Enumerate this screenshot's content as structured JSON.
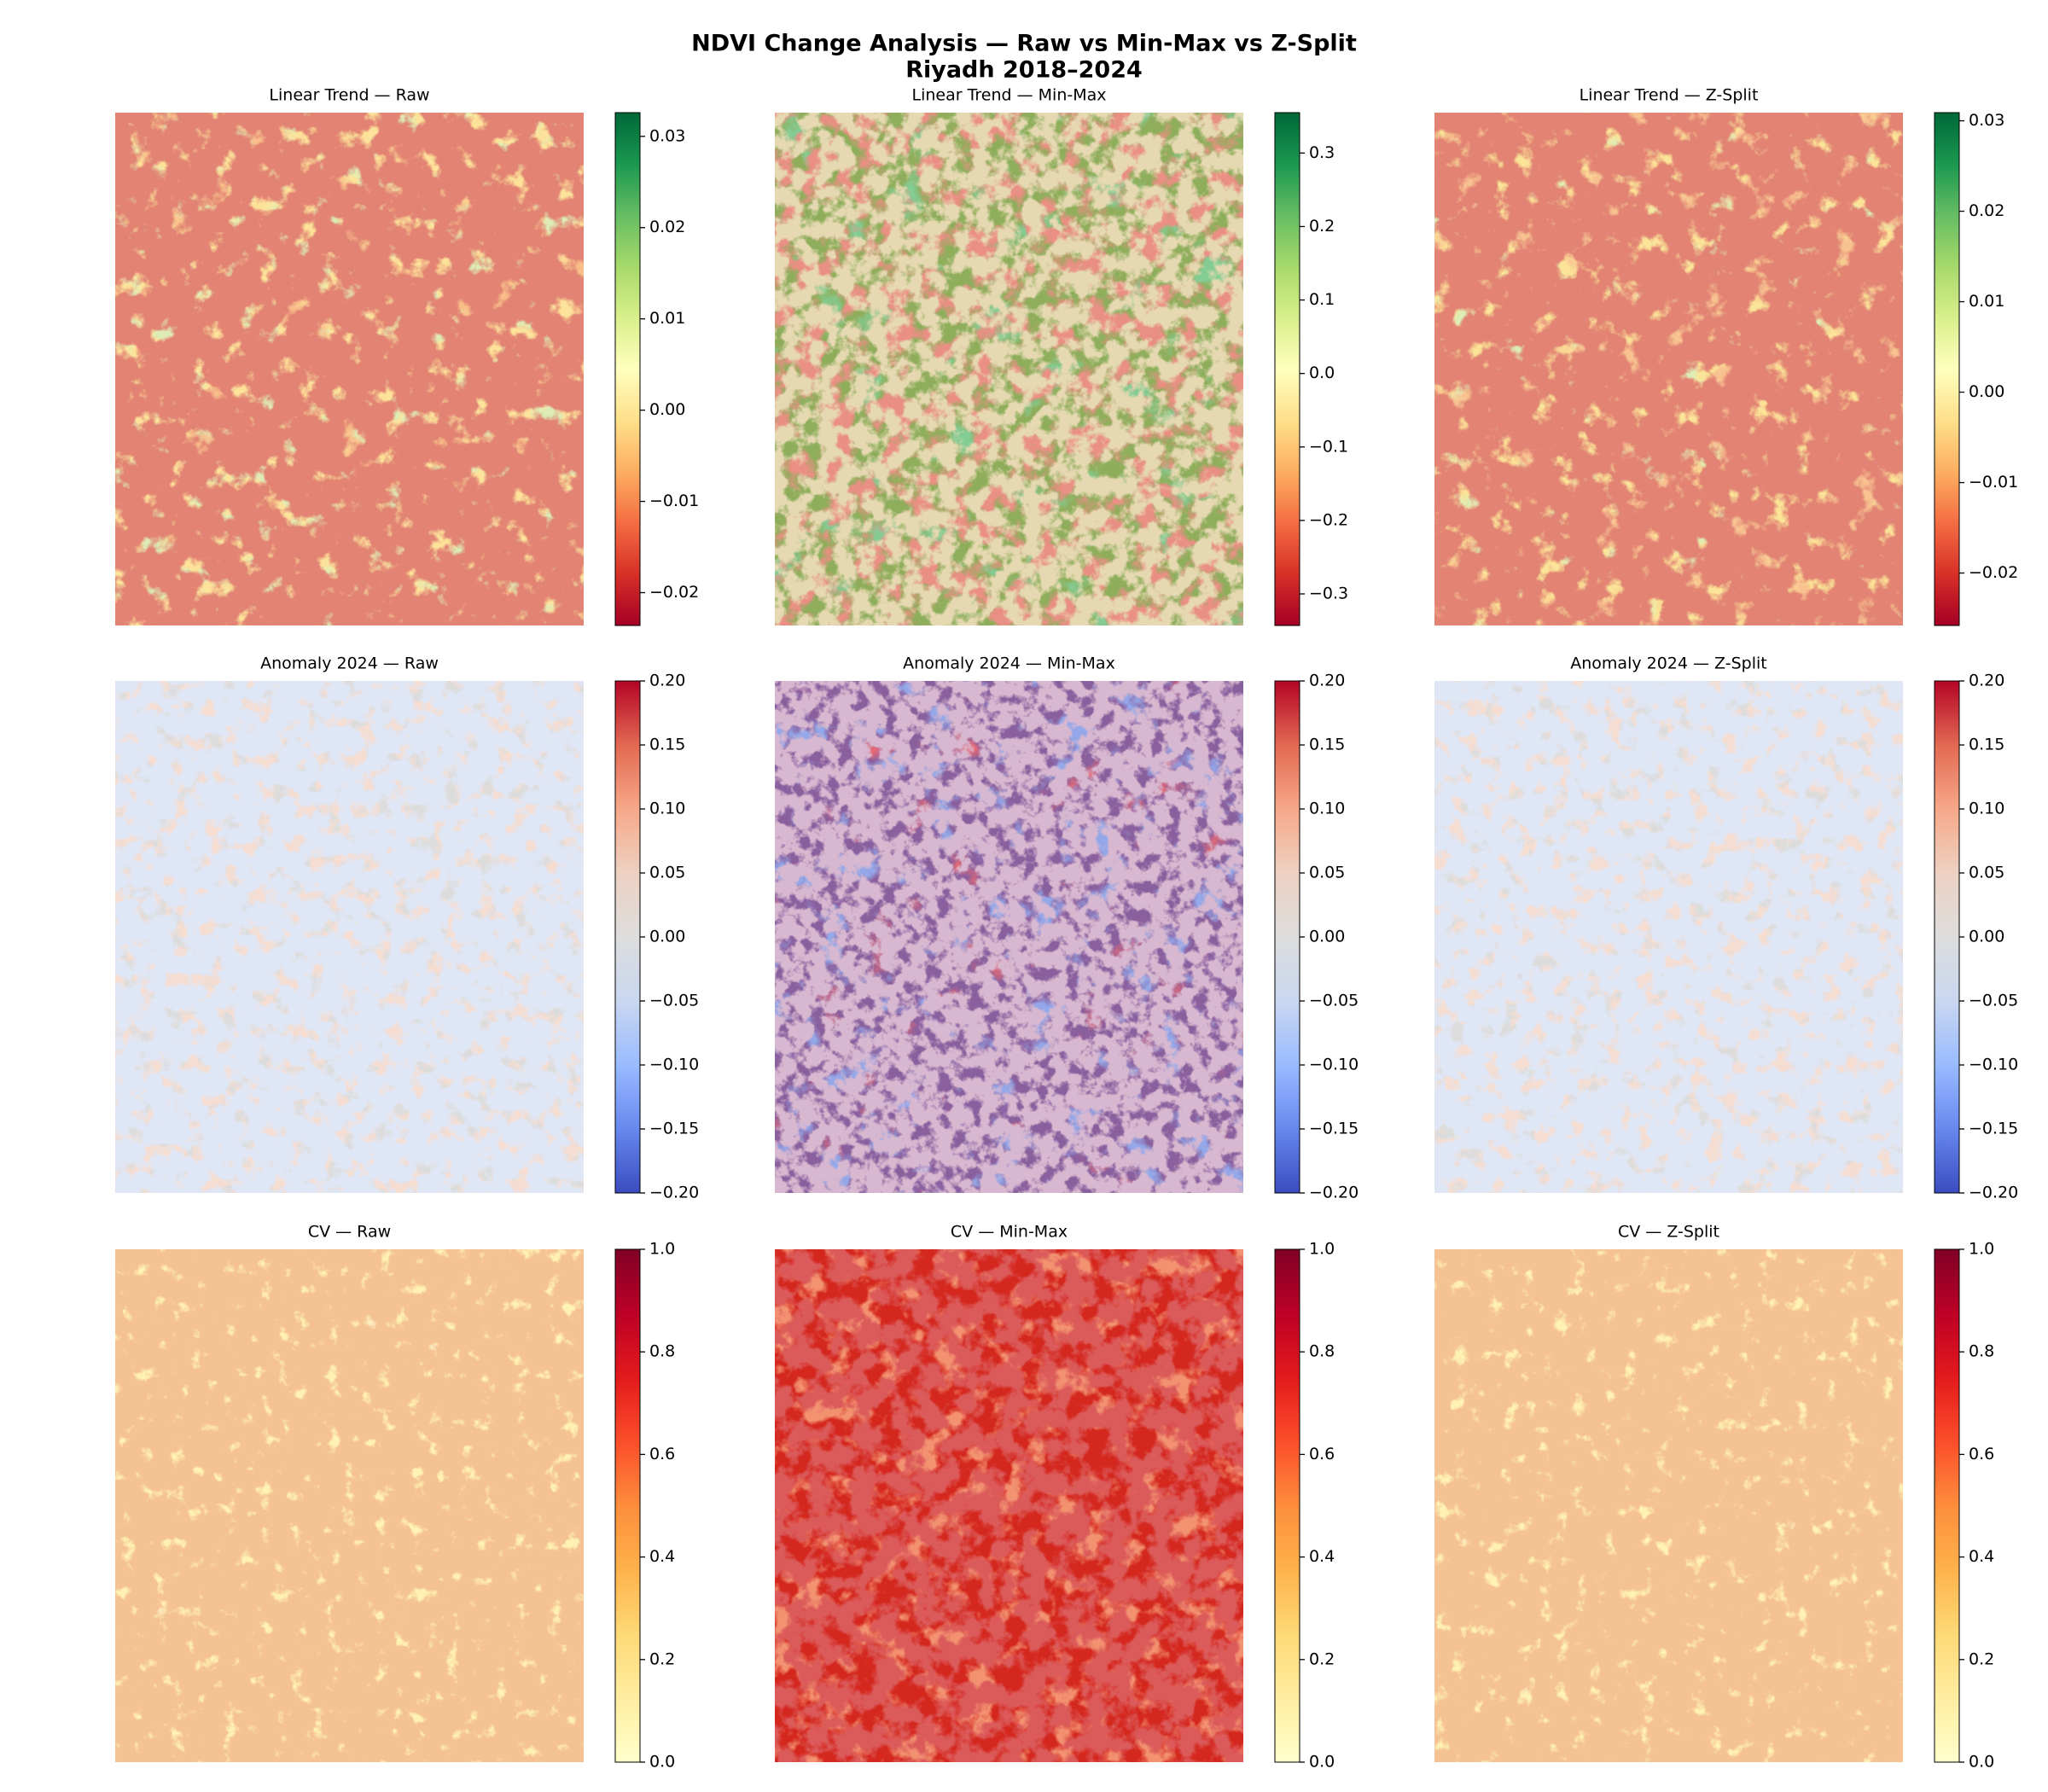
{
  "title": "NDVI Change Analysis — Raw vs Min-Max vs Z-Split",
  "subtitle": "Riyadh 2018–2024",
  "chart_data": [
    {
      "type": "image",
      "title": "Linear Trend — Raw",
      "colors": [
        "#a50026",
        "#d73027",
        "#f46d43",
        "#fdae61",
        "#fee08b",
        "#ffffbf",
        "#d9ef8b",
        "#a6d96a",
        "#66bd63",
        "#1a9850",
        "#006837"
      ],
      "ylim": [
        -0.0236,
        0.0326
      ],
      "yticks": [
        {
          "value": -0.02,
          "label": "−0.02"
        },
        {
          "value": -0.01,
          "label": "−0.01"
        },
        {
          "value": 0,
          "label": "0.00"
        },
        0.01,
        0.02,
        0.03
      ]
    },
    {
      "type": "image",
      "title": "Linear Trend — Min-Max",
      "colors": [
        "#a50026",
        "#d73027",
        "#f46d43",
        "#fdae61",
        "#fee08b",
        "#ffffbf",
        "#d9ef8b",
        "#a6d96a",
        "#66bd63",
        "#1a9850",
        "#006837"
      ],
      "ylim": [
        -0.343,
        0.355
      ],
      "yticks": [
        {
          "value": -0.3,
          "label": "−0.3"
        },
        {
          "value": -0.2,
          "label": "−0.2"
        },
        {
          "value": -0.1,
          "label": "−0.1"
        },
        {
          "value": 0,
          "label": "0.0"
        },
        0.1,
        0.2,
        0.3
      ]
    },
    {
      "type": "image",
      "title": "Linear Trend — Z-Split",
      "colors": [
        "#a50026",
        "#d73027",
        "#f46d43",
        "#fdae61",
        "#fee08b",
        "#ffffbf",
        "#d9ef8b",
        "#a6d96a",
        "#66bd63",
        "#1a9850",
        "#006837"
      ],
      "ylim": [
        -0.0258,
        0.0309
      ],
      "yticks": [
        {
          "value": -0.02,
          "label": "−0.02"
        },
        {
          "value": -0.01,
          "label": "−0.01"
        },
        {
          "value": 0,
          "label": "0.00"
        },
        0.01,
        0.02,
        0.03
      ]
    },
    {
      "type": "image",
      "title": "Anomaly 2024 — Raw",
      "colors": [
        "#3b4cc0",
        "#6788ee",
        "#9abbff",
        "#c9d7f0",
        "#dddddd",
        "#edd1c2",
        "#f7a889",
        "#e26952",
        "#b40426"
      ],
      "ylim": [
        -0.2,
        0.2
      ],
      "yticks": [
        {
          "value": -0.2,
          "label": "−0.20"
        },
        {
          "value": -0.15,
          "label": "−0.15"
        },
        {
          "value": -0.1,
          "label": "−0.10"
        },
        {
          "value": -0.05,
          "label": "−0.05"
        },
        {
          "value": 0,
          "label": "0.00"
        },
        0.05,
        {
          "value": 0.1,
          "label": "0.10"
        },
        0.15,
        {
          "value": 0.2,
          "label": "0.20"
        }
      ]
    },
    {
      "type": "image",
      "title": "Anomaly 2024 — Min-Max",
      "colors": [
        "#3b4cc0",
        "#6788ee",
        "#9abbff",
        "#c9d7f0",
        "#dddddd",
        "#edd1c2",
        "#f7a889",
        "#e26952",
        "#b40426"
      ],
      "ylim": [
        -0.2,
        0.2
      ],
      "yticks": [
        {
          "value": -0.2,
          "label": "−0.20"
        },
        {
          "value": -0.15,
          "label": "−0.15"
        },
        {
          "value": -0.1,
          "label": "−0.10"
        },
        {
          "value": -0.05,
          "label": "−0.05"
        },
        {
          "value": 0,
          "label": "0.00"
        },
        0.05,
        {
          "value": 0.1,
          "label": "0.10"
        },
        0.15,
        {
          "value": 0.2,
          "label": "0.20"
        }
      ]
    },
    {
      "type": "image",
      "title": "Anomaly 2024 — Z-Split",
      "colors": [
        "#3b4cc0",
        "#6788ee",
        "#9abbff",
        "#c9d7f0",
        "#dddddd",
        "#edd1c2",
        "#f7a889",
        "#e26952",
        "#b40426"
      ],
      "ylim": [
        -0.2,
        0.2
      ],
      "yticks": [
        {
          "value": -0.2,
          "label": "−0.20"
        },
        {
          "value": -0.15,
          "label": "−0.15"
        },
        {
          "value": -0.1,
          "label": "−0.10"
        },
        {
          "value": -0.05,
          "label": "−0.05"
        },
        {
          "value": 0,
          "label": "0.00"
        },
        0.05,
        {
          "value": 0.1,
          "label": "0.10"
        },
        0.15,
        {
          "value": 0.2,
          "label": "0.20"
        }
      ]
    },
    {
      "type": "image",
      "title": "CV — Raw",
      "colors": [
        "#ffffcc",
        "#ffeda0",
        "#fed976",
        "#feb24c",
        "#fd8d3c",
        "#fc4e2a",
        "#e31a1c",
        "#bd0026",
        "#800026"
      ],
      "ylim": [
        0,
        1
      ],
      "yticks": [
        {
          "value": 0,
          "label": "0.0"
        },
        0.2,
        0.4,
        0.6,
        0.8,
        {
          "value": 1,
          "label": "1.0"
        }
      ]
    },
    {
      "type": "image",
      "title": "CV — Min-Max",
      "colors": [
        "#ffffcc",
        "#ffeda0",
        "#fed976",
        "#feb24c",
        "#fd8d3c",
        "#fc4e2a",
        "#e31a1c",
        "#bd0026",
        "#800026"
      ],
      "ylim": [
        0,
        1
      ],
      "yticks": [
        {
          "value": 0,
          "label": "0.0"
        },
        0.2,
        0.4,
        0.6,
        0.8,
        {
          "value": 1,
          "label": "1.0"
        }
      ]
    },
    {
      "type": "image",
      "title": "CV — Z-Split",
      "colors": [
        "#ffffcc",
        "#ffeda0",
        "#fed976",
        "#feb24c",
        "#fd8d3c",
        "#fc4e2a",
        "#e31a1c",
        "#bd0026",
        "#800026"
      ],
      "ylim": [
        0,
        1
      ],
      "yticks": [
        {
          "value": 0,
          "label": "0.0"
        },
        0.2,
        0.4,
        0.6,
        0.8,
        {
          "value": 1,
          "label": "1.0"
        }
      ]
    }
  ]
}
